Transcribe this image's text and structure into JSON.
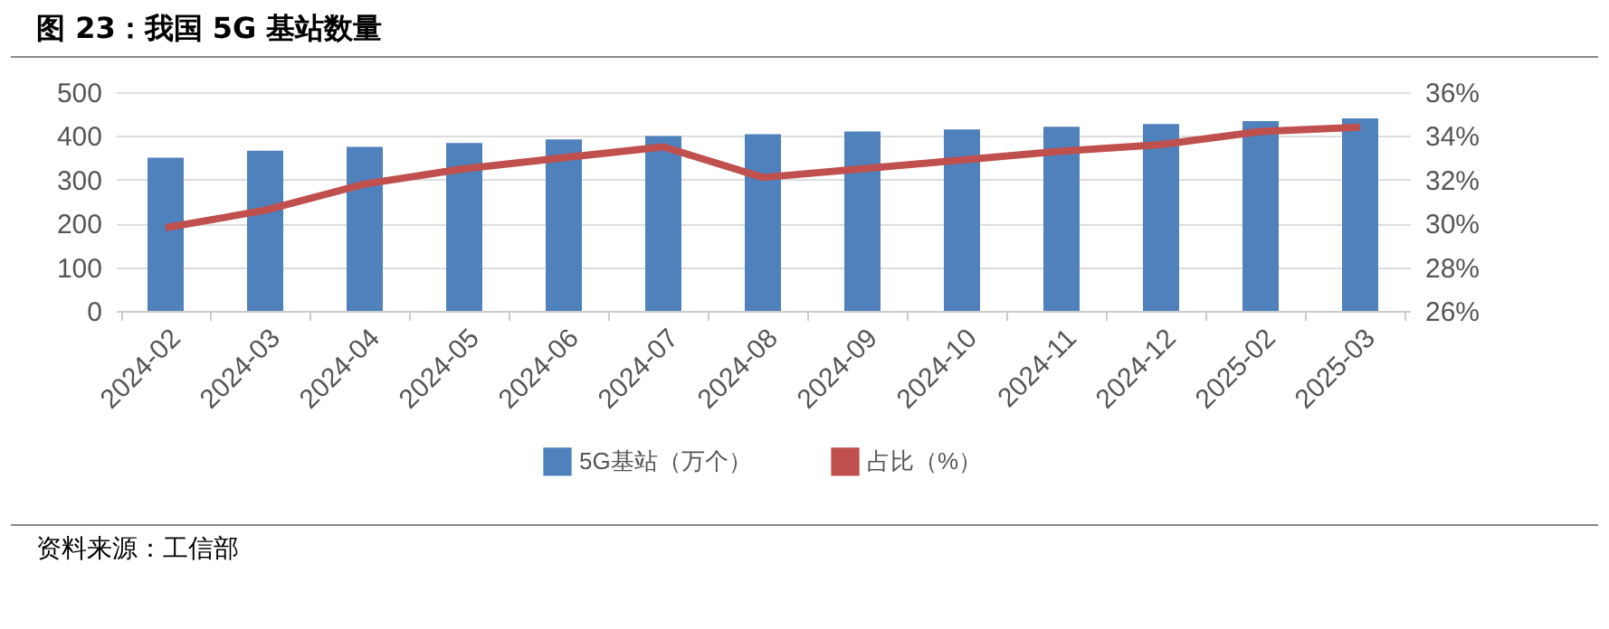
{
  "chart_data": {
    "type": "bar",
    "title": "图 23：我国 5G 基站数量",
    "categories": [
      "2024-02",
      "2024-03",
      "2024-04",
      "2024-05",
      "2024-06",
      "2024-07",
      "2024-08",
      "2024-09",
      "2024-10",
      "2024-11",
      "2024-12",
      "2025-02",
      "2025-03"
    ],
    "series": [
      {
        "name": "5G基站（万个）",
        "color": "#4f81bd",
        "values": [
          350,
          366,
          375,
          384,
          392,
          400,
          404,
          410,
          415,
          421,
          427,
          434,
          440
        ]
      },
      {
        "name": "占比（%）",
        "type": "line",
        "axis": "y2",
        "color": "#c0504d",
        "values": [
          29.8,
          30.6,
          31.8,
          32.5,
          33.0,
          33.5,
          32.1,
          32.5,
          32.9,
          33.3,
          33.6,
          34.2,
          34.4
        ]
      }
    ],
    "ylim": [
      0,
      500
    ],
    "yticks": [
      0,
      100,
      200,
      300,
      400,
      500
    ],
    "y2lim": [
      26,
      36
    ],
    "y2ticks": [
      {
        "value": 26,
        "label": "26%"
      },
      {
        "value": 28,
        "label": "28%"
      },
      {
        "value": 30,
        "label": "30%"
      },
      {
        "value": 32,
        "label": "32%"
      },
      {
        "value": 34,
        "label": "34%"
      },
      {
        "value": 36,
        "label": "36%"
      }
    ],
    "grid": "y",
    "legend": "bottom",
    "annotations": [
      "资料来源：工信部"
    ]
  }
}
